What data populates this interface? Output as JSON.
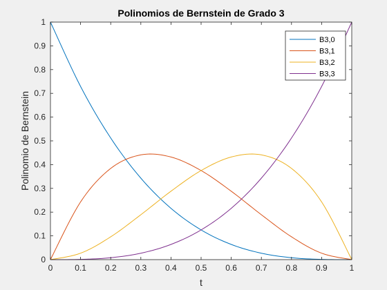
{
  "chart_data": {
    "type": "line",
    "title": "Polinomios de Bernstein de Grado 3",
    "xlabel": "t",
    "ylabel": "Polinomio de Bernstein",
    "xlim": [
      0,
      1
    ],
    "ylim": [
      0,
      1
    ],
    "xticks": [
      0,
      0.1,
      0.2,
      0.3,
      0.4,
      0.5,
      0.6,
      0.7,
      0.8,
      0.9,
      1
    ],
    "xtick_labels": [
      "0",
      "0.1",
      "0.2",
      "0.3",
      "0.4",
      "0.5",
      "0.6",
      "0.7",
      "0.8",
      "0.9",
      "1"
    ],
    "yticks": [
      0,
      0.1,
      0.2,
      0.3,
      0.4,
      0.5,
      0.6,
      0.7,
      0.8,
      0.9,
      1
    ],
    "ytick_labels": [
      "0",
      "0.1",
      "0.2",
      "0.3",
      "0.4",
      "0.5",
      "0.6",
      "0.7",
      "0.8",
      "0.9",
      "1"
    ],
    "grid": false,
    "legend_position": "top-right",
    "x": [
      0,
      0.1,
      0.2,
      0.3,
      0.4,
      0.5,
      0.6,
      0.7,
      0.8,
      0.9,
      1
    ],
    "series": [
      {
        "name": "B3,0",
        "color": "#0072BD",
        "values": [
          1,
          0.729,
          0.512,
          0.343,
          0.216,
          0.125,
          0.064,
          0.027,
          0.008,
          0.001,
          0
        ]
      },
      {
        "name": "B3,1",
        "color": "#D95319",
        "values": [
          0,
          0.243,
          0.384,
          0.441,
          0.432,
          0.375,
          0.288,
          0.189,
          0.096,
          0.027,
          0
        ]
      },
      {
        "name": "B3,2",
        "color": "#EDB120",
        "values": [
          0,
          0.027,
          0.096,
          0.189,
          0.288,
          0.375,
          0.432,
          0.441,
          0.384,
          0.243,
          0
        ]
      },
      {
        "name": "B3,3",
        "color": "#7E2F8E",
        "values": [
          0,
          0.001,
          0.008,
          0.027,
          0.064,
          0.125,
          0.216,
          0.343,
          0.512,
          0.729,
          1
        ]
      }
    ]
  }
}
